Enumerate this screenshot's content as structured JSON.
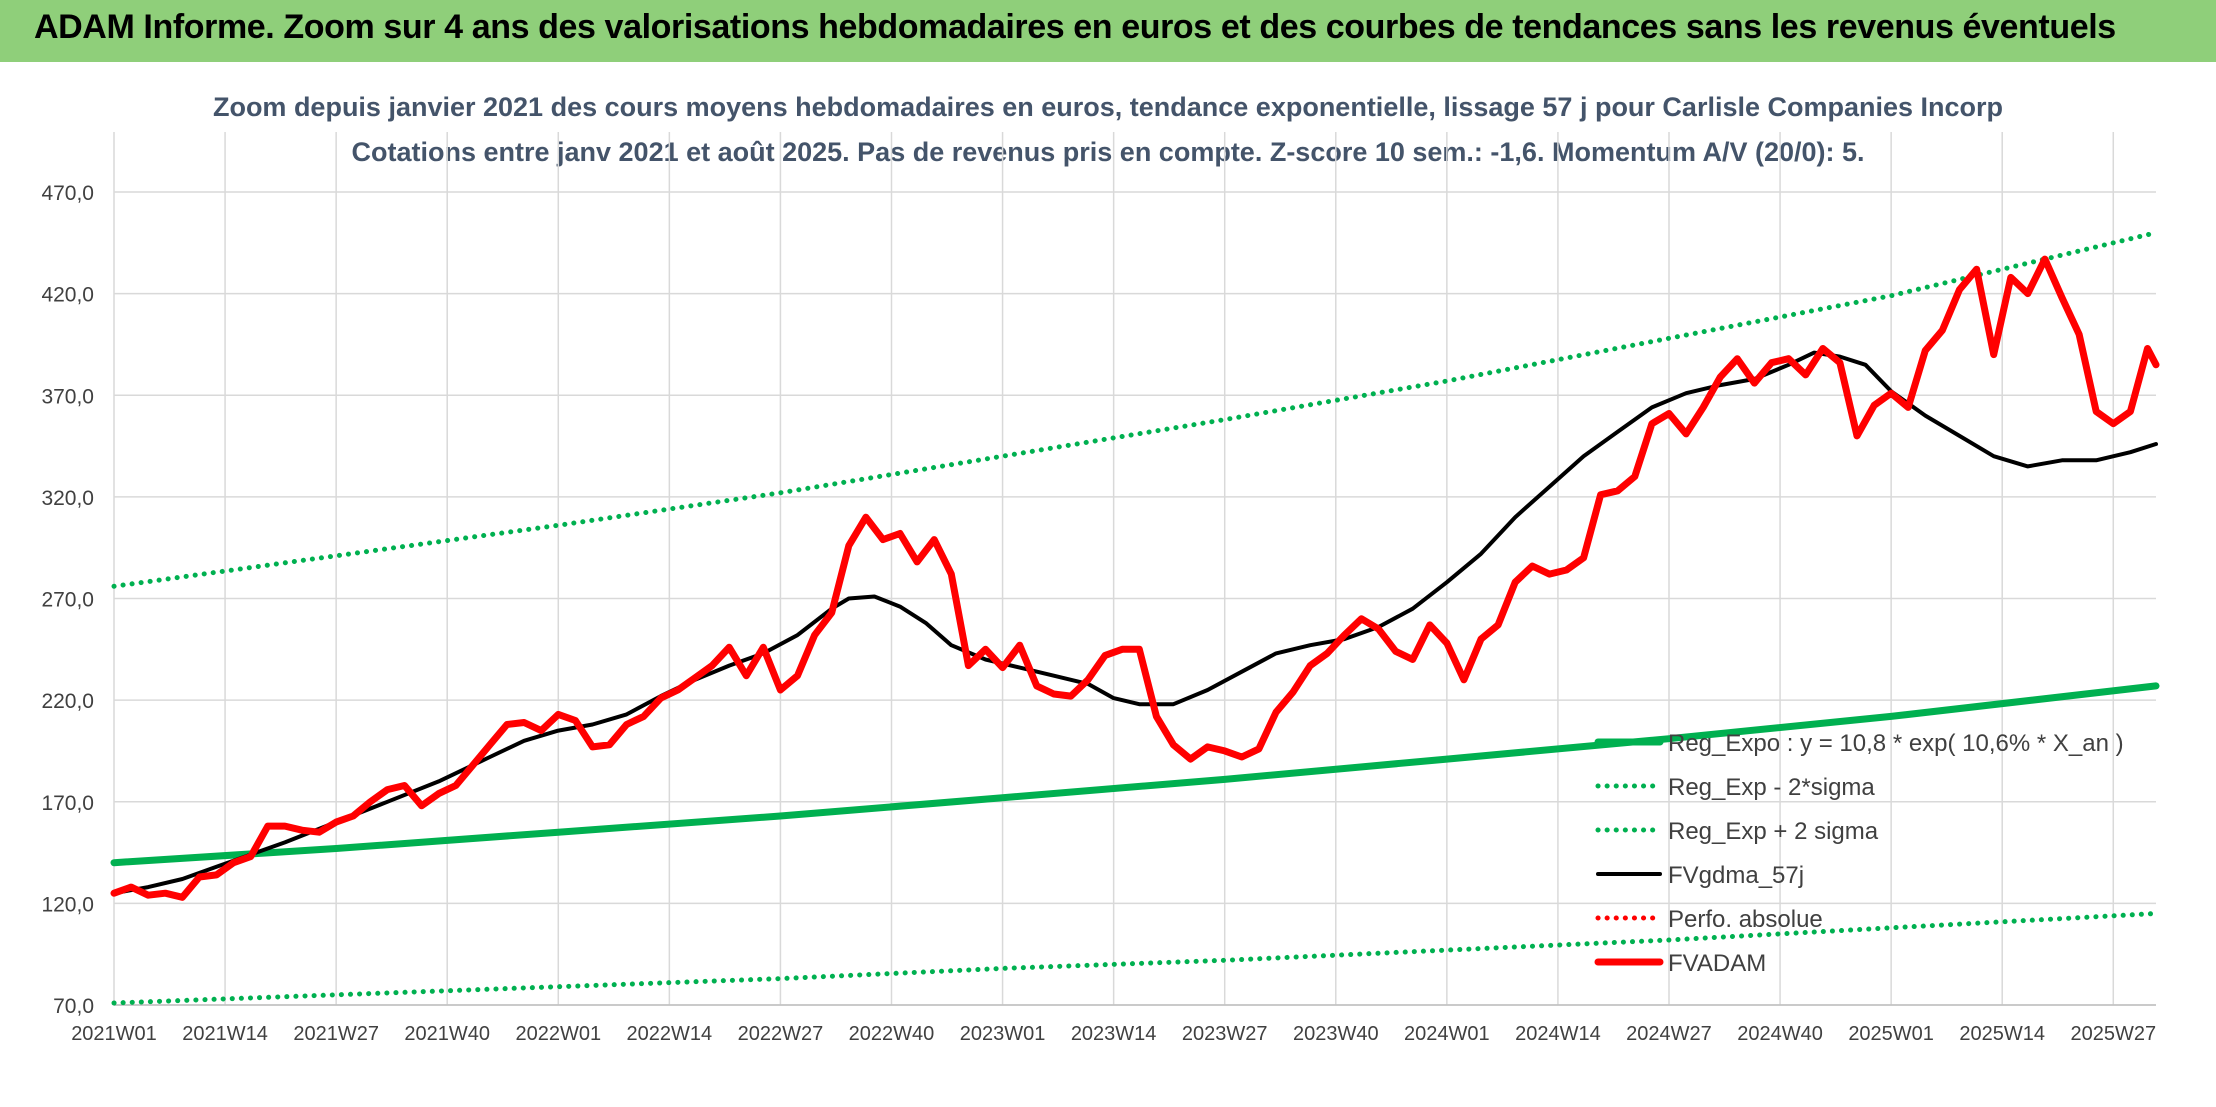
{
  "banner": {
    "title": "ADAM Informe. Zoom sur 4 ans des valorisations hebdomadaires en euros et des courbes de tendances sans les revenus éventuels",
    "background_color": "#8fcf7a",
    "accent_color": "#e8c84a"
  },
  "chart_data": {
    "type": "line",
    "title": "Zoom depuis janvier 2021 des cours moyens hebdomadaires en euros, tendance exponentielle, lissage 57 j pour Carlisle Companies Incorp",
    "subtitle": "Cotations entre janv 2021 et août 2025. Pas de revenus pris en compte. Z-score 10 sem.: -1,6. Momentum A/V (20/0): 5.",
    "xlabel": "",
    "ylabel": "",
    "ylim": [
      70,
      470
    ],
    "xlim": [
      0,
      239
    ],
    "grid": true,
    "legend_position": "bottom-right",
    "x_ticks": [
      {
        "label": "2021W01",
        "x": 0
      },
      {
        "label": "2021W14",
        "x": 13
      },
      {
        "label": "2021W27",
        "x": 26
      },
      {
        "label": "2021W40",
        "x": 39
      },
      {
        "label": "2022W01",
        "x": 52
      },
      {
        "label": "2022W14",
        "x": 65
      },
      {
        "label": "2022W27",
        "x": 78
      },
      {
        "label": "2022W40",
        "x": 91
      },
      {
        "label": "2023W01",
        "x": 104
      },
      {
        "label": "2023W14",
        "x": 117
      },
      {
        "label": "2023W27",
        "x": 130
      },
      {
        "label": "2023W40",
        "x": 143
      },
      {
        "label": "2024W01",
        "x": 156
      },
      {
        "label": "2024W14",
        "x": 169
      },
      {
        "label": "2024W27",
        "x": 182
      },
      {
        "label": "2024W40",
        "x": 195
      },
      {
        "label": "2025W01",
        "x": 208
      },
      {
        "label": "2025W14",
        "x": 221
      },
      {
        "label": "2025W27",
        "x": 234
      }
    ],
    "y_ticks": [
      "70,0",
      "120,0",
      "170,0",
      "220,0",
      "270,0",
      "320,0",
      "370,0",
      "420,0",
      "470,0"
    ],
    "y_tick_values": [
      70,
      120,
      170,
      220,
      270,
      320,
      370,
      420,
      470
    ],
    "series": [
      {
        "name": "Reg_Expo : y = 10,8 * exp( 10,6% *  X_an )",
        "style": "solid-thick",
        "color": "#00b050",
        "points": [
          [
            0,
            140
          ],
          [
            26,
            147
          ],
          [
            52,
            155
          ],
          [
            78,
            163
          ],
          [
            104,
            172
          ],
          [
            130,
            181
          ],
          [
            156,
            191
          ],
          [
            182,
            201
          ],
          [
            208,
            212
          ],
          [
            239,
            227
          ]
        ]
      },
      {
        "name": "Reg_Exp - 2*sigma",
        "style": "dotted",
        "color": "#00b050",
        "points": [
          [
            0,
            71
          ],
          [
            26,
            75
          ],
          [
            52,
            79
          ],
          [
            78,
            83
          ],
          [
            104,
            88
          ],
          [
            130,
            92
          ],
          [
            156,
            97
          ],
          [
            182,
            102
          ],
          [
            208,
            108
          ],
          [
            239,
            115
          ]
        ]
      },
      {
        "name": "Reg_Exp + 2 sigma",
        "style": "dotted",
        "color": "#00b050",
        "points": [
          [
            0,
            276
          ],
          [
            26,
            291
          ],
          [
            52,
            306
          ],
          [
            78,
            322
          ],
          [
            104,
            340
          ],
          [
            130,
            358
          ],
          [
            156,
            377
          ],
          [
            182,
            398
          ],
          [
            208,
            419
          ],
          [
            239,
            450
          ]
        ]
      },
      {
        "name": "FVgdma_57j",
        "style": "solid",
        "color": "#000000",
        "points": [
          [
            0,
            125
          ],
          [
            4,
            128
          ],
          [
            8,
            132
          ],
          [
            12,
            138
          ],
          [
            16,
            144
          ],
          [
            20,
            150
          ],
          [
            26,
            160
          ],
          [
            32,
            170
          ],
          [
            38,
            180
          ],
          [
            44,
            192
          ],
          [
            48,
            200
          ],
          [
            52,
            205
          ],
          [
            56,
            208
          ],
          [
            60,
            213
          ],
          [
            64,
            222
          ],
          [
            68,
            230
          ],
          [
            72,
            237
          ],
          [
            76,
            243
          ],
          [
            80,
            252
          ],
          [
            84,
            265
          ],
          [
            86,
            270
          ],
          [
            89,
            271
          ],
          [
            92,
            266
          ],
          [
            95,
            258
          ],
          [
            98,
            247
          ],
          [
            102,
            240
          ],
          [
            106,
            236
          ],
          [
            110,
            232
          ],
          [
            114,
            228
          ],
          [
            117,
            221
          ],
          [
            120,
            218
          ],
          [
            124,
            218
          ],
          [
            128,
            225
          ],
          [
            132,
            234
          ],
          [
            136,
            243
          ],
          [
            140,
            247
          ],
          [
            144,
            250
          ],
          [
            148,
            256
          ],
          [
            152,
            265
          ],
          [
            156,
            278
          ],
          [
            160,
            292
          ],
          [
            164,
            310
          ],
          [
            168,
            325
          ],
          [
            172,
            340
          ],
          [
            176,
            352
          ],
          [
            180,
            364
          ],
          [
            184,
            371
          ],
          [
            188,
            375
          ],
          [
            192,
            378
          ],
          [
            196,
            385
          ],
          [
            199,
            391
          ],
          [
            202,
            389
          ],
          [
            205,
            385
          ],
          [
            208,
            372
          ],
          [
            212,
            360
          ],
          [
            216,
            350
          ],
          [
            220,
            340
          ],
          [
            224,
            335
          ],
          [
            228,
            338
          ],
          [
            232,
            338
          ],
          [
            236,
            342
          ],
          [
            239,
            346
          ]
        ]
      },
      {
        "name": "Perfo. absolue",
        "style": "dotted",
        "color": "#ff0000",
        "points": []
      },
      {
        "name": "FVADAM",
        "style": "solid-thick",
        "color": "#ff0000",
        "points": [
          [
            0,
            125
          ],
          [
            2,
            128
          ],
          [
            4,
            124
          ],
          [
            6,
            125
          ],
          [
            8,
            123
          ],
          [
            10,
            133
          ],
          [
            12,
            134
          ],
          [
            14,
            140
          ],
          [
            16,
            143
          ],
          [
            18,
            158
          ],
          [
            20,
            158
          ],
          [
            22,
            156
          ],
          [
            24,
            155
          ],
          [
            26,
            160
          ],
          [
            28,
            163
          ],
          [
            30,
            170
          ],
          [
            32,
            176
          ],
          [
            34,
            178
          ],
          [
            36,
            168
          ],
          [
            38,
            174
          ],
          [
            40,
            178
          ],
          [
            42,
            188
          ],
          [
            44,
            198
          ],
          [
            46,
            208
          ],
          [
            48,
            209
          ],
          [
            50,
            205
          ],
          [
            52,
            213
          ],
          [
            54,
            210
          ],
          [
            56,
            197
          ],
          [
            58,
            198
          ],
          [
            60,
            208
          ],
          [
            62,
            212
          ],
          [
            64,
            221
          ],
          [
            66,
            225
          ],
          [
            68,
            231
          ],
          [
            70,
            237
          ],
          [
            72,
            246
          ],
          [
            74,
            232
          ],
          [
            76,
            246
          ],
          [
            78,
            225
          ],
          [
            80,
            232
          ],
          [
            82,
            252
          ],
          [
            84,
            263
          ],
          [
            86,
            296
          ],
          [
            88,
            310
          ],
          [
            90,
            299
          ],
          [
            92,
            302
          ],
          [
            94,
            288
          ],
          [
            96,
            299
          ],
          [
            98,
            282
          ],
          [
            100,
            237
          ],
          [
            102,
            245
          ],
          [
            104,
            236
          ],
          [
            106,
            247
          ],
          [
            108,
            227
          ],
          [
            110,
            223
          ],
          [
            112,
            222
          ],
          [
            114,
            230
          ],
          [
            116,
            242
          ],
          [
            118,
            245
          ],
          [
            120,
            245
          ],
          [
            122,
            212
          ],
          [
            124,
            198
          ],
          [
            126,
            191
          ],
          [
            128,
            197
          ],
          [
            130,
            195
          ],
          [
            132,
            192
          ],
          [
            134,
            196
          ],
          [
            136,
            214
          ],
          [
            138,
            224
          ],
          [
            140,
            237
          ],
          [
            142,
            243
          ],
          [
            144,
            252
          ],
          [
            146,
            260
          ],
          [
            148,
            255
          ],
          [
            150,
            244
          ],
          [
            152,
            240
          ],
          [
            154,
            257
          ],
          [
            156,
            248
          ],
          [
            158,
            230
          ],
          [
            160,
            250
          ],
          [
            162,
            257
          ],
          [
            164,
            278
          ],
          [
            166,
            286
          ],
          [
            168,
            282
          ],
          [
            170,
            284
          ],
          [
            172,
            290
          ],
          [
            174,
            321
          ],
          [
            176,
            323
          ],
          [
            178,
            330
          ],
          [
            180,
            356
          ],
          [
            182,
            361
          ],
          [
            184,
            351
          ],
          [
            186,
            364
          ],
          [
            188,
            379
          ],
          [
            190,
            388
          ],
          [
            192,
            376
          ],
          [
            194,
            386
          ],
          [
            196,
            388
          ],
          [
            198,
            380
          ],
          [
            200,
            393
          ],
          [
            202,
            386
          ],
          [
            204,
            350
          ],
          [
            206,
            365
          ],
          [
            208,
            371
          ],
          [
            210,
            364
          ],
          [
            212,
            392
          ],
          [
            214,
            402
          ],
          [
            216,
            422
          ],
          [
            218,
            432
          ],
          [
            220,
            390
          ],
          [
            222,
            428
          ],
          [
            224,
            420
          ],
          [
            226,
            437
          ],
          [
            228,
            418
          ],
          [
            230,
            400
          ],
          [
            232,
            362
          ],
          [
            234,
            356
          ],
          [
            236,
            362
          ],
          [
            238,
            393
          ],
          [
            239,
            385
          ]
        ]
      }
    ]
  }
}
